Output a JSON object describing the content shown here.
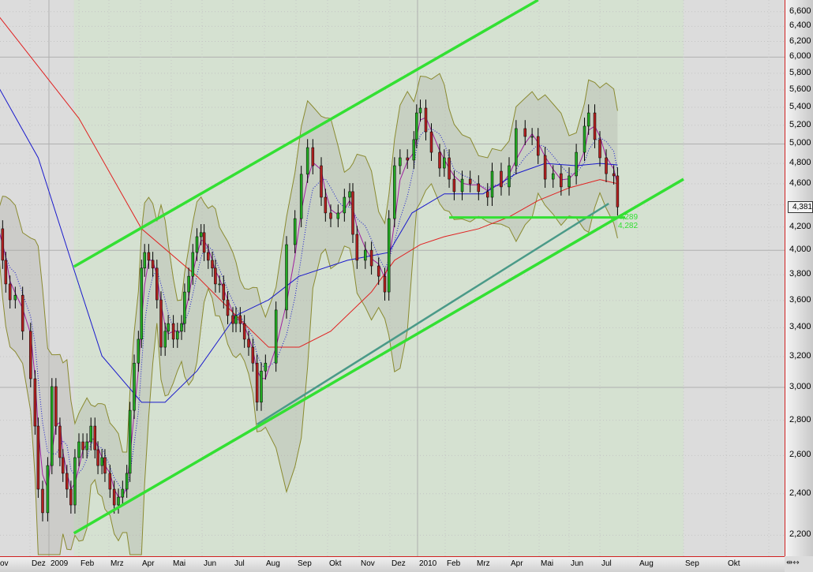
{
  "chart_data": {
    "type": "candlestick",
    "yscale": "log",
    "ylim": [
      2100,
      6800
    ],
    "yticks": [
      2200,
      2400,
      2600,
      2800,
      3000,
      3200,
      3400,
      3600,
      3800,
      4000,
      4200,
      4400,
      4600,
      4800,
      5000,
      5200,
      5400,
      5600,
      5800,
      6000,
      6200,
      6400,
      6600
    ],
    "ytick_labels": [
      "2,200",
      "2,400",
      "2,600",
      "2,800",
      "3,000",
      "3,200",
      "3,400",
      "3,600",
      "3,800",
      "4,000",
      "4,200",
      "",
      "4,600",
      "4,800",
      "5,000",
      "5,200",
      "5,400",
      "5,600",
      "5,800",
      "6,000",
      "6,200",
      "6,400",
      "6,600"
    ],
    "xtick_labels": [
      "ov",
      "Dez",
      "2009",
      "Feb",
      "Mrz",
      "Apr",
      "Mai",
      "Jun",
      "Jul",
      "Aug",
      "Sep",
      "Okt",
      "Nov",
      "Dez",
      "2010",
      "Feb",
      "Mrz",
      "Apr",
      "Mai",
      "Jun",
      "Jul",
      "Aug",
      "Sep",
      "Okt"
    ],
    "last_price_label": "4,381",
    "support_labels": [
      "4,289",
      "4,282"
    ],
    "grid": true,
    "colors": {
      "up": "#22a822",
      "down": "#b02020",
      "ma_long": "#e02020",
      "ma_mid": "#1a1acc",
      "channel": "#33e033",
      "trendline": "#4a9a88",
      "background": "#dcdcdc",
      "channel_fill": "#d2e2cc"
    },
    "close": [
      [
        "2008-11-01",
        4185
      ],
      [
        "2008-11-05",
        3917
      ],
      [
        "2008-11-08",
        3727
      ],
      [
        "2008-11-12",
        3605
      ],
      [
        "2008-11-17",
        3640
      ],
      [
        "2008-11-24",
        3375
      ],
      [
        "2008-12-02",
        3055
      ],
      [
        "2008-12-09",
        2766
      ],
      [
        "2008-12-14",
        2423
      ],
      [
        "2008-12-21",
        2306
      ],
      [
        "2008-12-29",
        2546
      ],
      [
        "2009-01-04",
        3005
      ],
      [
        "2009-01-08",
        2766
      ],
      [
        "2009-01-12",
        2589
      ],
      [
        "2009-01-15",
        2505
      ],
      [
        "2009-01-19",
        2423
      ],
      [
        "2009-01-23",
        2344
      ],
      [
        "2009-01-27",
        2589
      ],
      [
        "2009-02-01",
        2676
      ],
      [
        "2009-02-05",
        2632
      ],
      [
        "2009-02-09",
        2676
      ],
      [
        "2009-02-13",
        2766
      ],
      [
        "2009-02-17",
        2632
      ],
      [
        "2009-02-20",
        2546
      ],
      [
        "2009-02-24",
        2589
      ],
      [
        "2009-02-27",
        2505
      ],
      [
        "2009-03-02",
        2423
      ],
      [
        "2009-03-06",
        2344
      ],
      [
        "2009-03-10",
        2383
      ],
      [
        "2009-03-14",
        2423
      ],
      [
        "2009-03-18",
        2505
      ],
      [
        "2009-03-21",
        2859
      ],
      [
        "2009-03-25",
        3157
      ],
      [
        "2009-03-29",
        3319
      ],
      [
        "2009-04-02",
        3853
      ],
      [
        "2009-04-05",
        3982
      ],
      [
        "2009-04-09",
        3917
      ],
      [
        "2009-04-13",
        3853
      ],
      [
        "2009-04-17",
        3605
      ],
      [
        "2009-04-21",
        3264
      ],
      [
        "2009-04-25",
        3375
      ],
      [
        "2009-04-28",
        3430
      ],
      [
        "2009-05-03",
        3319
      ],
      [
        "2009-05-07",
        3375
      ],
      [
        "2009-05-11",
        3430
      ],
      [
        "2009-05-14",
        3665
      ],
      [
        "2009-05-18",
        3788
      ],
      [
        "2009-05-22",
        3982
      ],
      [
        "2009-05-26",
        4116
      ],
      [
        "2009-05-30",
        4151
      ],
      [
        "2009-06-03",
        3982
      ],
      [
        "2009-06-07",
        3917
      ],
      [
        "2009-06-11",
        3853
      ],
      [
        "2009-06-14",
        3727
      ],
      [
        "2009-06-18",
        3727
      ],
      [
        "2009-06-22",
        3605
      ],
      [
        "2009-06-26",
        3488
      ],
      [
        "2009-07-01",
        3430
      ],
      [
        "2009-07-04",
        3488
      ],
      [
        "2009-07-08",
        3430
      ],
      [
        "2009-07-12",
        3319
      ],
      [
        "2009-07-16",
        3264
      ],
      [
        "2009-07-20",
        3157
      ],
      [
        "2009-07-24",
        2908
      ],
      [
        "2009-07-28",
        3105
      ],
      [
        "2009-08-02",
        3157
      ],
      [
        "2009-08-12",
        3529
      ],
      [
        "2009-08-22",
        4048
      ],
      [
        "2009-08-30",
        4275
      ],
      [
        "2009-09-06",
        4692
      ],
      [
        "2009-09-12",
        4962
      ],
      [
        "2009-09-17",
        4777
      ],
      [
        "2009-09-25",
        4471
      ],
      [
        "2009-09-29",
        4326
      ],
      [
        "2009-10-04",
        4275
      ],
      [
        "2009-10-11",
        4326
      ],
      [
        "2009-10-17",
        4471
      ],
      [
        "2009-10-22",
        4524
      ],
      [
        "2009-10-25",
        4136
      ],
      [
        "2009-10-29",
        3917
      ],
      [
        "2009-11-07",
        4001
      ],
      [
        "2009-11-13",
        3871
      ],
      [
        "2009-11-20",
        3788
      ],
      [
        "2009-11-26",
        3665
      ],
      [
        "2009-11-30",
        4275
      ],
      [
        "2009-12-06",
        4777
      ],
      [
        "2009-12-12",
        4857
      ],
      [
        "2009-12-20",
        4833
      ],
      [
        "2009-12-27",
        5046
      ],
      [
        "2009-12-30",
        5337
      ],
      [
        "2010-01-04",
        5391
      ],
      [
        "2010-01-10",
        5129
      ],
      [
        "2010-01-16",
        4913
      ],
      [
        "2010-01-25",
        4753
      ],
      [
        "2010-01-30",
        4857
      ],
      [
        "2010-02-05",
        4644
      ],
      [
        "2010-02-10",
        4524
      ],
      [
        "2010-02-18",
        4644
      ],
      [
        "2010-02-26",
        4599
      ],
      [
        "2010-03-04",
        4524
      ],
      [
        "2010-03-12",
        4471
      ],
      [
        "2010-03-16",
        4722
      ],
      [
        "2010-03-24",
        4569
      ],
      [
        "2010-03-31",
        4777
      ],
      [
        "2010-04-08",
        5164
      ],
      [
        "2010-04-17",
        5079
      ],
      [
        "2010-04-24",
        5079
      ],
      [
        "2010-04-30",
        4881
      ],
      [
        "2010-05-07",
        4644
      ],
      [
        "2010-05-15",
        4698
      ],
      [
        "2010-05-23",
        4569
      ],
      [
        "2010-05-31",
        4676
      ],
      [
        "2010-06-08",
        4913
      ],
      [
        "2010-06-16",
        5190
      ],
      [
        "2010-06-20",
        5337
      ],
      [
        "2010-06-26",
        5046
      ],
      [
        "2010-07-01",
        4857
      ],
      [
        "2010-07-06",
        4698
      ],
      [
        "2010-07-12",
        4676
      ],
      [
        "2010-07-15",
        4381
      ]
    ],
    "ma_long": [
      [
        "2008-11-01",
        6544
      ],
      [
        "2009-02-01",
        5276
      ],
      [
        "2009-04-02",
        4185
      ],
      [
        "2009-05-26",
        3788
      ],
      [
        "2009-07-04",
        3488
      ],
      [
        "2009-08-05",
        3264
      ],
      [
        "2009-09-04",
        3264
      ],
      [
        "2009-10-04",
        3375
      ],
      [
        "2009-11-13",
        3665
      ],
      [
        "2009-12-06",
        3917
      ],
      [
        "2010-01-04",
        4048
      ],
      [
        "2010-01-30",
        4116
      ],
      [
        "2010-03-04",
        4185
      ],
      [
        "2010-03-31",
        4290
      ],
      [
        "2010-04-30",
        4440
      ],
      [
        "2010-05-31",
        4560
      ],
      [
        "2010-07-01",
        4640
      ],
      [
        "2010-07-15",
        4600
      ]
    ],
    "ma_mid": [
      [
        "2008-11-01",
        5637
      ],
      [
        "2008-12-14",
        4857
      ],
      [
        "2009-01-23",
        3917
      ],
      [
        "2009-02-24",
        3205
      ],
      [
        "2009-04-02",
        2908
      ],
      [
        "2009-04-25",
        2908
      ],
      [
        "2009-05-26",
        3105
      ],
      [
        "2009-07-04",
        3488
      ],
      [
        "2009-08-05",
        3605
      ],
      [
        "2009-09-04",
        3788
      ],
      [
        "2009-10-20",
        3917
      ],
      [
        "2009-11-30",
        3982
      ],
      [
        "2009-12-25",
        4326
      ],
      [
        "2010-01-30",
        4503
      ],
      [
        "2010-03-08",
        4503
      ],
      [
        "2010-04-08",
        4698
      ],
      [
        "2010-05-07",
        4800
      ],
      [
        "2010-06-08",
        4777
      ],
      [
        "2010-07-01",
        4800
      ],
      [
        "2010-07-15",
        4785
      ]
    ],
    "channel_upper": [
      [
        "2009-01-26",
        3865
      ],
      [
        "2010-04-30",
        6763
      ]
    ],
    "channel_lower": [
      [
        "2009-01-26",
        2209
      ],
      [
        "2010-09-01",
        4644
      ]
    ],
    "trendline": [
      [
        "2009-07-24",
        2776
      ],
      [
        "2010-07-08",
        4412
      ]
    ],
    "support_line": [
      [
        "2010-02-05",
        4285
      ],
      [
        "2010-07-21",
        4285
      ]
    ]
  }
}
